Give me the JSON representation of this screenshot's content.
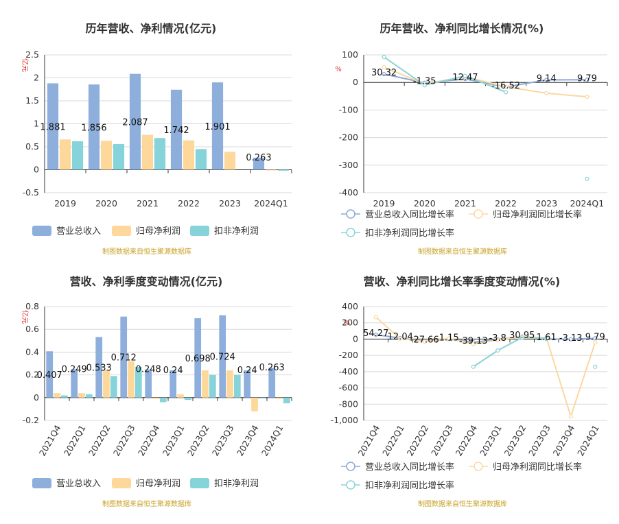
{
  "colors": {
    "revenue": "#8eafdc",
    "net_profit": "#fdd89a",
    "deducted_profit": "#86d4d9",
    "revenue_line": "#8aa8d6",
    "net_line": "#fbd8a0",
    "deducted_line": "#8ad3d8"
  },
  "chart_data": [
    {
      "id": "annual-amounts",
      "type": "bar",
      "title": "历年营收、净利情况(亿元)",
      "unit": "亿元",
      "source": "制图数据来自恒生聚源数据库",
      "categories": [
        "2019",
        "2020",
        "2021",
        "2022",
        "2023",
        "2024Q1"
      ],
      "series": [
        {
          "name": "营业总收入",
          "color": "revenue",
          "values": [
            1.881,
            1.856,
            2.087,
            1.742,
            1.901,
            0.263
          ]
        },
        {
          "name": "归母净利润",
          "color": "net_profit",
          "values": [
            0.66,
            0.63,
            0.76,
            0.64,
            0.39,
            -0.01
          ]
        },
        {
          "name": "扣非净利润",
          "color": "deducted_profit",
          "values": [
            0.62,
            0.56,
            0.69,
            0.45,
            null,
            -0.02
          ]
        }
      ],
      "data_labels": [
        "1.881",
        "1.856",
        "2.087",
        "1.742",
        "1.901",
        "0.263"
      ],
      "ylim": [
        -0.5,
        2.5
      ],
      "yticks": [
        -0.5,
        0,
        0.5,
        1,
        1.5,
        2,
        2.5
      ],
      "ytick_labels": [
        "-0.5",
        "0",
        "0.5",
        "1",
        "1.5",
        "2",
        "2.5"
      ],
      "grid": true,
      "legend": "bottom"
    },
    {
      "id": "annual-growth",
      "type": "line",
      "title": "历年营收、净利同比增长情况(%)",
      "unit": "%",
      "source": "制图数据来自恒生聚源数据库",
      "categories": [
        "2019",
        "2020",
        "2021",
        "2022",
        "2023",
        "2024Q1"
      ],
      "series": [
        {
          "name": "营业总收入同比增长率",
          "color": "revenue_line",
          "values": [
            30.32,
            -1.35,
            12.47,
            -16.52,
            9.14,
            9.79
          ]
        },
        {
          "name": "归母净利润同比增长率",
          "color": "net_line",
          "values": [
            55,
            -5,
            21,
            -16,
            -39,
            -52
          ]
        },
        {
          "name": "扣非净利润同比增长率",
          "color": "deducted_line",
          "values": [
            92,
            -10,
            24,
            -35,
            null,
            -350
          ]
        }
      ],
      "data_labels": [
        "30.32",
        "-1.35",
        "12.47",
        "-16.52",
        "9.14",
        "9.79"
      ],
      "ylim": [
        -400,
        100
      ],
      "yticks": [
        -400,
        -300,
        -200,
        -100,
        0,
        100
      ],
      "ytick_labels": [
        "-400",
        "-300",
        "-200",
        "-100",
        "0",
        "100"
      ],
      "grid": true,
      "legend": "bottom"
    },
    {
      "id": "quarterly-amounts",
      "type": "bar",
      "title": "营收、净利季度变动情况(亿元)",
      "unit": "亿元",
      "source": "制图数据来自恒生聚源数据库",
      "categories": [
        "2021Q4",
        "2022Q1",
        "2022Q2",
        "2022Q3",
        "2022Q4",
        "2023Q1",
        "2023Q2",
        "2023Q3",
        "2023Q4",
        "2024Q1"
      ],
      "series": [
        {
          "name": "营业总收入",
          "color": "revenue",
          "values": [
            0.407,
            0.249,
            0.533,
            0.712,
            0.248,
            0.24,
            0.698,
            0.724,
            0.24,
            0.263
          ]
        },
        {
          "name": "归母净利润",
          "color": "net_profit",
          "values": [
            0.04,
            0.04,
            0.24,
            0.32,
            -0.01,
            0.03,
            0.24,
            0.24,
            -0.12,
            -0.01
          ]
        },
        {
          "name": "扣非净利润",
          "color": "deducted_profit",
          "values": [
            0.02,
            0.03,
            0.19,
            0.27,
            -0.04,
            -0.02,
            0.2,
            0.2,
            0.0,
            -0.05
          ]
        }
      ],
      "data_labels": [
        "0.407",
        "0.249",
        "0.533",
        "0.712",
        "0.248",
        "0.24",
        "0.698",
        "0.724",
        "0.24",
        "0.263"
      ],
      "ylim": [
        -0.2,
        0.8
      ],
      "yticks": [
        -0.2,
        0,
        0.2,
        0.4,
        0.6,
        0.8
      ],
      "ytick_labels": [
        "-0.2",
        "0",
        "0.2",
        "0.4",
        "0.6",
        "0.8"
      ],
      "grid": true,
      "legend": "bottom"
    },
    {
      "id": "quarterly-growth",
      "type": "line",
      "title": "营收、净利同比增长率季度变动情况(%)",
      "unit": "%",
      "source": "制图数据来自恒生聚源数据库",
      "categories": [
        "2021Q4",
        "2022Q1",
        "2022Q2",
        "2022Q3",
        "2022Q4",
        "2023Q1",
        "2023Q2",
        "2023Q3",
        "2023Q4",
        "2024Q1"
      ],
      "series": [
        {
          "name": "营业总收入同比增长率",
          "color": "revenue_line",
          "values": [
            54.27,
            12.04,
            -27.66,
            1.15,
            -39.13,
            -3.8,
            30.95,
            1.61,
            -3.13,
            9.79
          ]
        },
        {
          "name": "归母净利润同比增长率",
          "color": "net_line",
          "values": [
            270,
            5,
            -30,
            10,
            -60,
            -10,
            30,
            15,
            -950,
            -40
          ]
        },
        {
          "name": "扣非净利润同比增长率",
          "color": "deducted_line",
          "values": [
            null,
            null,
            null,
            null,
            -340,
            -140,
            20,
            10,
            null,
            -340
          ]
        }
      ],
      "data_labels": [
        "54.27",
        "12.04",
        "-27.66",
        "1.15",
        "-39.13",
        "-3.8",
        "30.95",
        "1.61",
        "-3.13",
        "9.79"
      ],
      "ylim": [
        -1000,
        400
      ],
      "yticks": [
        -1000,
        -800,
        -600,
        -400,
        -200,
        0,
        200,
        400
      ],
      "ytick_labels": [
        "-1,000",
        "-800",
        "-600",
        "-400",
        "-200",
        "0",
        "200",
        "400"
      ],
      "grid": true,
      "legend": "bottom"
    }
  ]
}
